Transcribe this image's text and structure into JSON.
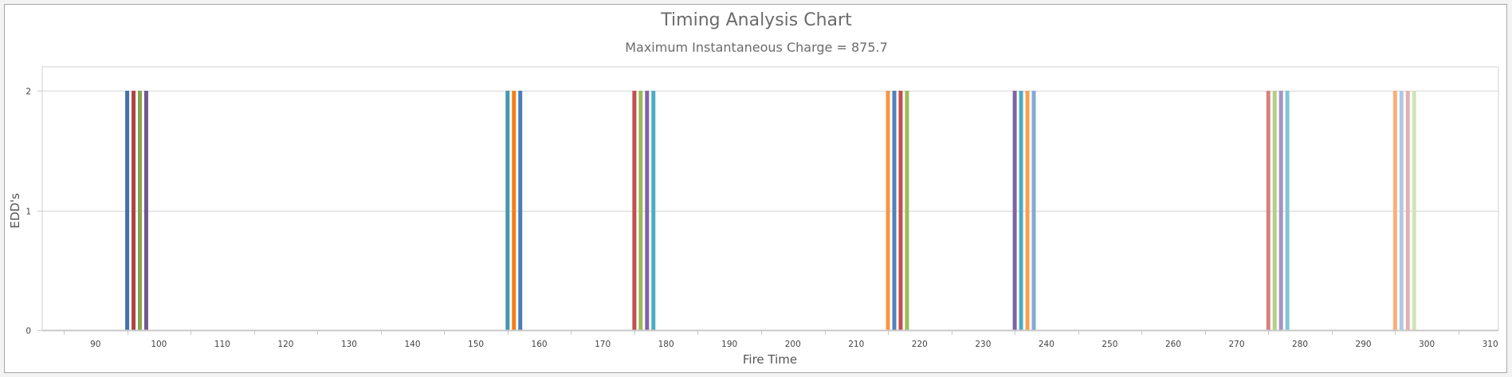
{
  "chart_data": {
    "type": "bar",
    "title": "Timing Analysis Chart",
    "subtitle": "Maximum Instantaneous Charge = 875.7",
    "xlabel": "Fire Time",
    "ylabel": "EDD's",
    "xlim": [
      81.6,
      311.3
    ],
    "ylim": [
      0,
      2.2
    ],
    "grid": true,
    "legend": "none",
    "x_ticks": [
      90,
      100,
      110,
      120,
      130,
      140,
      150,
      160,
      170,
      180,
      190,
      200,
      210,
      220,
      230,
      240,
      250,
      260,
      270,
      280,
      290,
      300,
      310
    ],
    "x_tick_labels": [
      "90",
      "100",
      "110",
      "120",
      "130",
      "140",
      "150",
      "160",
      "170",
      "180",
      "190",
      "200",
      "210",
      "220",
      "230",
      "240",
      "250",
      "260",
      "270",
      "280",
      "290",
      "300",
      "310"
    ],
    "y_ticks": [
      0,
      1,
      2
    ],
    "y_tick_labels": [
      "0",
      "1",
      "2"
    ],
    "bars": [
      {
        "x": 95,
        "y": 2,
        "color": "#4572a7"
      },
      {
        "x": 96,
        "y": 2,
        "color": "#aa4643"
      },
      {
        "x": 97,
        "y": 2,
        "color": "#89a54e"
      },
      {
        "x": 98,
        "y": 2,
        "color": "#71588f"
      },
      {
        "x": 155,
        "y": 2,
        "color": "#4198af"
      },
      {
        "x": 156,
        "y": 2,
        "color": "#f47f17"
      },
      {
        "x": 157,
        "y": 2,
        "color": "#4a7ebb"
      },
      {
        "x": 175,
        "y": 2,
        "color": "#c0504d"
      },
      {
        "x": 176,
        "y": 2,
        "color": "#9bbb59"
      },
      {
        "x": 177,
        "y": 2,
        "color": "#8064a2"
      },
      {
        "x": 178,
        "y": 2,
        "color": "#4bacc6"
      },
      {
        "x": 215,
        "y": 2,
        "color": "#f79646"
      },
      {
        "x": 216,
        "y": 2,
        "color": "#4f81bd"
      },
      {
        "x": 217,
        "y": 2,
        "color": "#c0504d"
      },
      {
        "x": 218,
        "y": 2,
        "color": "#9bbb59"
      },
      {
        "x": 235,
        "y": 2,
        "color": "#8064a2"
      },
      {
        "x": 236,
        "y": 2,
        "color": "#4bacc6"
      },
      {
        "x": 237,
        "y": 2,
        "color": "#f9a04e"
      },
      {
        "x": 238,
        "y": 2,
        "color": "#84a9d4"
      },
      {
        "x": 275,
        "y": 2,
        "color": "#d4827e"
      },
      {
        "x": 276,
        "y": 2,
        "color": "#b5cf86"
      },
      {
        "x": 277,
        "y": 2,
        "color": "#a793c0"
      },
      {
        "x": 278,
        "y": 2,
        "color": "#81c5d8"
      },
      {
        "x": 295,
        "y": 2,
        "color": "#f9b07a"
      },
      {
        "x": 296,
        "y": 2,
        "color": "#b0c8e3"
      },
      {
        "x": 297,
        "y": 2,
        "color": "#e2b1b0"
      },
      {
        "x": 298,
        "y": 2,
        "color": "#d3e2b5"
      }
    ]
  }
}
